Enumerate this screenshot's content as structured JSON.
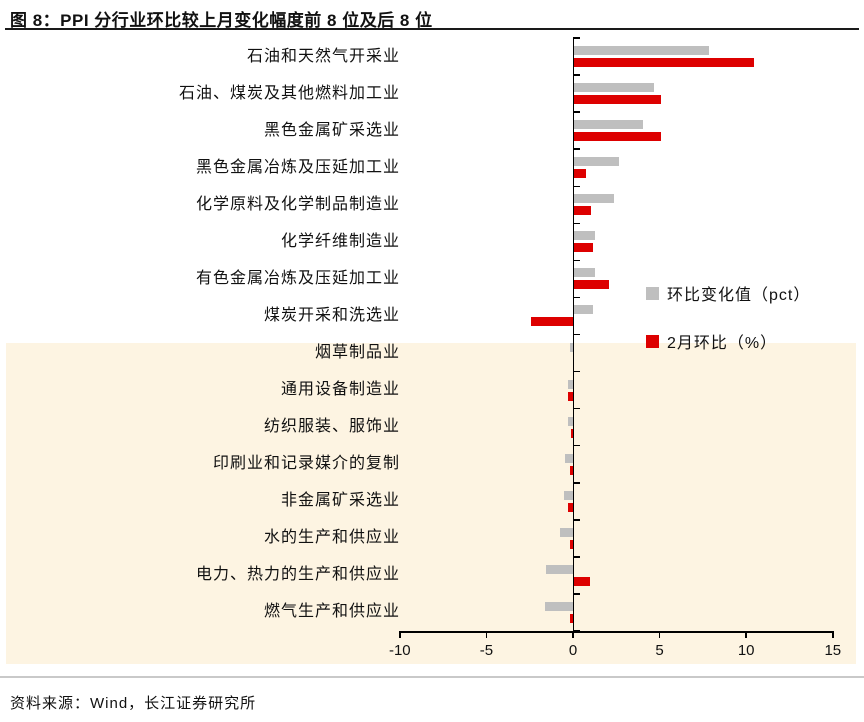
{
  "title": "图 8：PPI 分行业环比较上月变化幅度前 8 位及后 8 位",
  "footer": "资料来源：Wind，长江证券研究所",
  "chart_data": {
    "type": "bar",
    "orientation": "horizontal",
    "title": "图 8：PPI 分行业环比较上月变化幅度前 8 位及后 8 位",
    "categories": [
      "石油和天然气开采业",
      "石油、煤炭及其他燃料加工业",
      "黑色金属矿采选业",
      "黑色金属冶炼及压延加工业",
      "化学原料及化学制品制造业",
      "化学纤维制造业",
      "有色金属冶炼及压延加工业",
      "煤炭开采和洗选业",
      "烟草制品业",
      "通用设备制造业",
      "纺织服装、服饰业",
      "印刷业和记录媒介的复制",
      "非金属矿采选业",
      "水的生产和供应业",
      "电力、热力的生产和供应业",
      "燃气生产和供应业"
    ],
    "series": [
      {
        "name": "环比变化值（pct）",
        "color": "#bfbfbf",
        "values": [
          7.8,
          4.6,
          4.0,
          2.6,
          2.3,
          1.2,
          1.2,
          1.1,
          -0.2,
          -0.3,
          -0.3,
          -0.45,
          -0.5,
          -0.75,
          -1.55,
          -1.6
        ]
      },
      {
        "name": "2月环比（%）",
        "color": "#dd0000",
        "values": [
          10.4,
          5.0,
          5.0,
          0.7,
          1.0,
          1.1,
          2.0,
          -2.4,
          0.0,
          -0.3,
          -0.1,
          -0.15,
          -0.3,
          -0.15,
          0.95,
          -0.2
        ]
      }
    ],
    "xlim": [
      -10,
      15
    ],
    "x_ticks": [
      "-10",
      "-5",
      "0",
      "5",
      "10",
      "15"
    ],
    "grid": false,
    "legend_position": "middle-right",
    "highlight_rows_from": 8,
    "highlight_color": "#fdf4e2"
  }
}
